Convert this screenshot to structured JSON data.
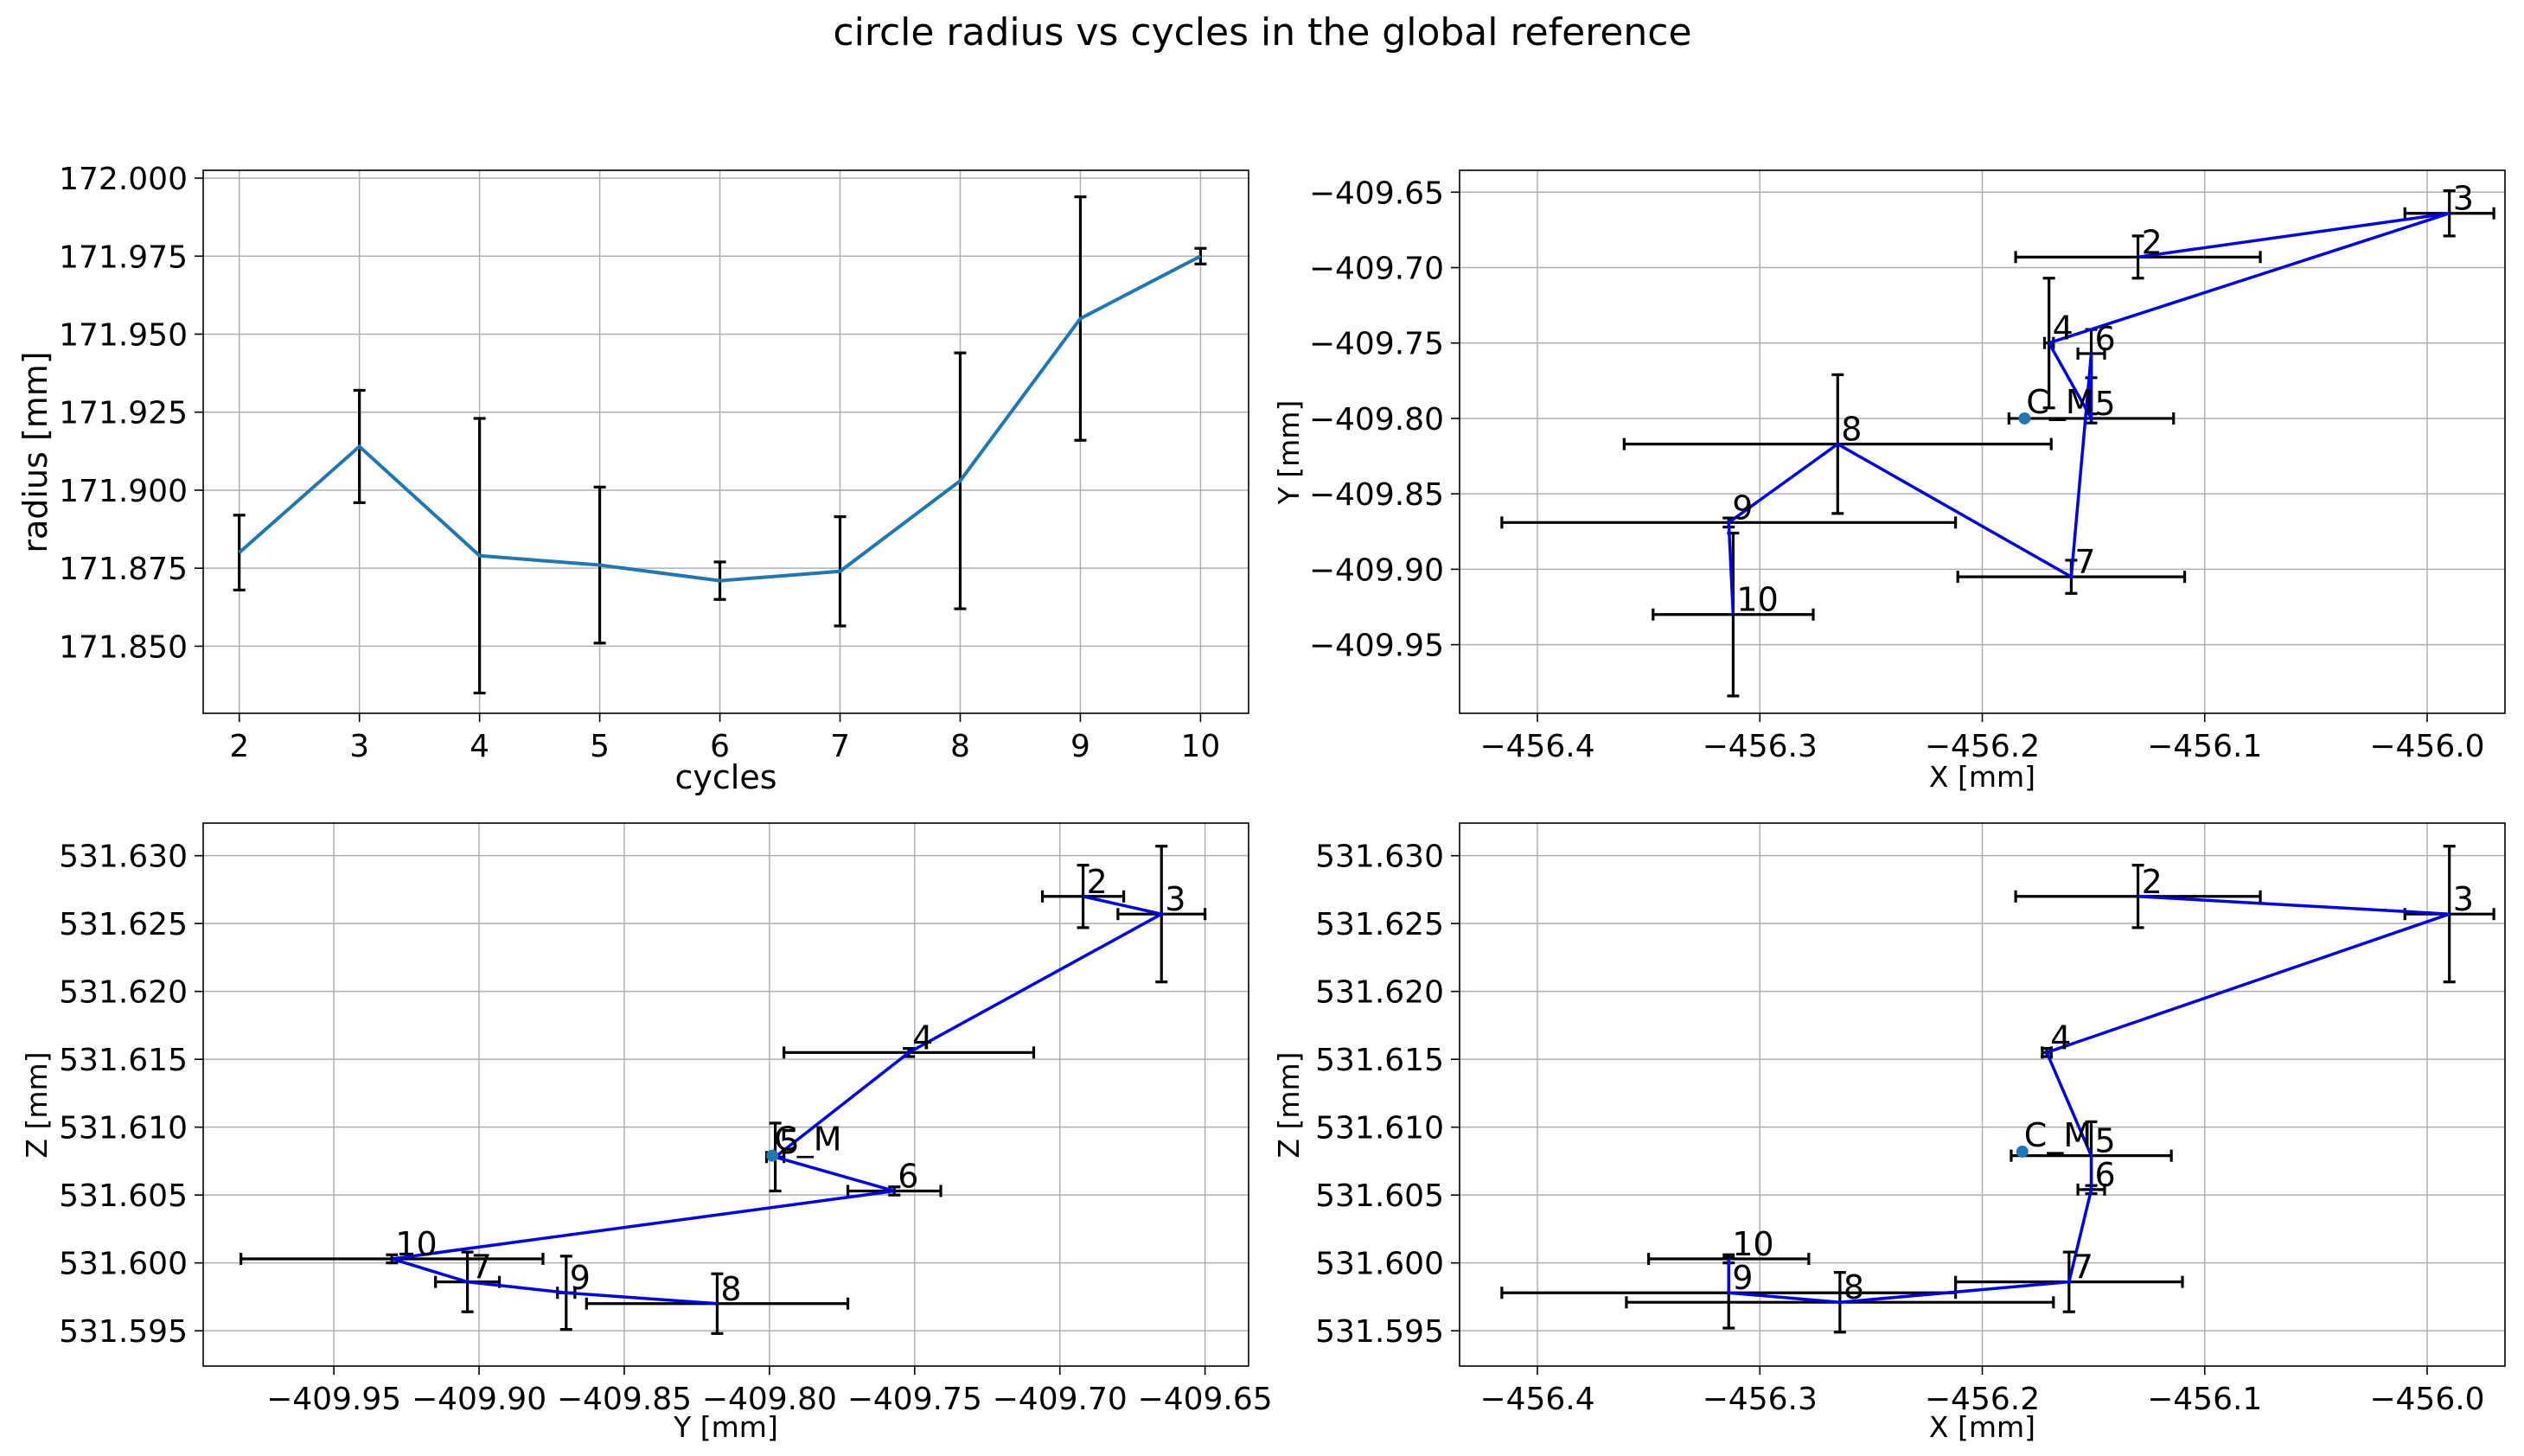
{
  "figure": {
    "suptitle": "circle radius vs cycles in the global reference"
  },
  "chart_data": [
    {
      "type": "line",
      "id": "radius",
      "xlabel": "cycles",
      "ylabel": "radius [mm]",
      "xlim": [
        1.7,
        10.4
      ],
      "ylim": [
        171.8285,
        172.0025
      ],
      "xticks": [
        2,
        3,
        4,
        5,
        6,
        7,
        8,
        9,
        10
      ],
      "xticklabels": [
        "2",
        "3",
        "4",
        "5",
        "6",
        "7",
        "8",
        "9",
        "10"
      ],
      "yticks": [
        171.85,
        171.875,
        171.9,
        171.925,
        171.95,
        171.975,
        172.0
      ],
      "yticklabels": [
        "171.850",
        "171.875",
        "171.900",
        "171.925",
        "171.950",
        "171.975",
        "172.000"
      ],
      "grid": true,
      "line_color": "#1f77b4",
      "x": [
        2,
        3,
        4,
        5,
        6,
        7,
        8,
        9,
        10
      ],
      "y": [
        171.88,
        171.914,
        171.879,
        171.876,
        171.871,
        171.874,
        171.903,
        171.955,
        171.975
      ],
      "yerr": [
        0.012,
        0.018,
        0.044,
        0.025,
        0.006,
        0.0175,
        0.041,
        0.039,
        0.0025
      ]
    },
    {
      "type": "scatter",
      "id": "xy",
      "xlabel": "X [mm]",
      "ylabel": "Y [mm]",
      "xlim": [
        -456.435,
        -455.965
      ],
      "ylim": [
        -409.9955,
        -409.6355
      ],
      "xticks": [
        -456.4,
        -456.3,
        -456.2,
        -456.1,
        -456.0
      ],
      "xticklabels": [
        "−456.4",
        "−456.3",
        "−456.2",
        "−456.1",
        "−456.0"
      ],
      "yticks": [
        -409.95,
        -409.9,
        -409.85,
        -409.8,
        -409.75,
        -409.7,
        -409.65
      ],
      "yticklabels": [
        "−409.95",
        "−409.90",
        "−409.85",
        "−409.80",
        "−409.75",
        "−409.70",
        "−409.65"
      ],
      "grid": true,
      "line_color": "#0000ee",
      "points": [
        {
          "label": "2",
          "x": -456.13,
          "y": -409.693,
          "xerr": 0.055,
          "yerr": 0.014
        },
        {
          "label": "3",
          "x": -455.99,
          "y": -409.664,
          "xerr": 0.02,
          "yerr": 0.015
        },
        {
          "label": "4",
          "x": -456.17,
          "y": -409.75,
          "xerr": 0.002,
          "yerr": 0.043
        },
        {
          "label": "5",
          "x": -456.151,
          "y": -409.8,
          "xerr": 0.037,
          "yerr": 0.003
        },
        {
          "label": "6",
          "x": -456.151,
          "y": -409.757,
          "xerr": 0.006,
          "yerr": 0.016
        },
        {
          "label": "7",
          "x": -456.16,
          "y": -409.905,
          "xerr": 0.051,
          "yerr": 0.011
        },
        {
          "label": "8",
          "x": -456.265,
          "y": -409.817,
          "xerr": 0.096,
          "yerr": 0.046
        },
        {
          "label": "9",
          "x": -456.314,
          "y": -409.869,
          "xerr": 0.102,
          "yerr": 0.003
        },
        {
          "label": "10",
          "x": -456.312,
          "y": -409.93,
          "xerr": 0.036,
          "yerr": 0.054
        }
      ],
      "path": [
        "2",
        "3",
        "4",
        "5",
        "6",
        "7",
        "8",
        "9",
        "10"
      ],
      "marker": {
        "label": "C_M",
        "x": -456.181,
        "y": -409.8,
        "color": "#1f77b4"
      }
    },
    {
      "type": "scatter",
      "id": "yz",
      "xlabel": "Y [mm]",
      "ylabel": "Z [mm]",
      "xlim": [
        -409.995,
        -409.635
      ],
      "ylim": [
        531.5924,
        531.6324
      ],
      "xticks": [
        -409.95,
        -409.9,
        -409.85,
        -409.8,
        -409.75,
        -409.7,
        -409.65
      ],
      "xticklabels": [
        "−409.95",
        "−409.90",
        "−409.85",
        "−409.80",
        "−409.75",
        "−409.70",
        "−409.65"
      ],
      "yticks": [
        531.595,
        531.6,
        531.605,
        531.61,
        531.615,
        531.62,
        531.625,
        531.63
      ],
      "yticklabels": [
        "531.595",
        "531.600",
        "531.605",
        "531.610",
        "531.615",
        "531.620",
        "531.625",
        "531.630"
      ],
      "grid": true,
      "line_color": "#0000ee",
      "points": [
        {
          "label": "2",
          "x": -409.692,
          "y": 531.627,
          "xerr": 0.014,
          "yerr": 0.0023
        },
        {
          "label": "3",
          "x": -409.665,
          "y": 531.6257,
          "xerr": 0.015,
          "yerr": 0.005
        },
        {
          "label": "4",
          "x": -409.752,
          "y": 531.6155,
          "xerr": 0.043,
          "yerr": 0.0003
        },
        {
          "label": "5",
          "x": -409.798,
          "y": 531.6078,
          "xerr": 0.003,
          "yerr": 0.0025
        },
        {
          "label": "6",
          "x": -409.757,
          "y": 531.6053,
          "xerr": 0.016,
          "yerr": 0.0003
        },
        {
          "label": "7",
          "x": -409.904,
          "y": 531.5986,
          "xerr": 0.011,
          "yerr": 0.0022
        },
        {
          "label": "8",
          "x": -409.818,
          "y": 531.597,
          "xerr": 0.045,
          "yerr": 0.0022
        },
        {
          "label": "9",
          "x": -409.87,
          "y": 531.5978,
          "xerr": 0.003,
          "yerr": 0.0027
        },
        {
          "label": "10",
          "x": -409.93,
          "y": 531.6003,
          "xerr": 0.052,
          "yerr": 0.0003
        }
      ],
      "path": [
        "2",
        "3",
        "4",
        "5",
        "6",
        "10",
        "7",
        "9",
        "8"
      ],
      "marker": {
        "label": "C_M",
        "x": -409.799,
        "y": 531.6079,
        "color": "#1f77b4"
      }
    },
    {
      "type": "scatter",
      "id": "xz",
      "xlabel": "X [mm]",
      "ylabel": "Z [mm]",
      "xlim": [
        -456.435,
        -455.965
      ],
      "ylim": [
        531.5924,
        531.6324
      ],
      "xticks": [
        -456.4,
        -456.3,
        -456.2,
        -456.1,
        -456.0
      ],
      "xticklabels": [
        "−456.4",
        "−456.3",
        "−456.2",
        "−456.1",
        "−456.0"
      ],
      "yticks": [
        531.595,
        531.6,
        531.605,
        531.61,
        531.615,
        531.62,
        531.625,
        531.63
      ],
      "yticklabels": [
        "531.595",
        "531.600",
        "531.605",
        "531.610",
        "531.615",
        "531.620",
        "531.625",
        "531.630"
      ],
      "grid": true,
      "line_color": "#0000ee",
      "points": [
        {
          "label": "2",
          "x": -456.13,
          "y": 531.627,
          "xerr": 0.055,
          "yerr": 0.0023
        },
        {
          "label": "3",
          "x": -455.99,
          "y": 531.6257,
          "xerr": 0.02,
          "yerr": 0.005
        },
        {
          "label": "4",
          "x": -456.171,
          "y": 531.6155,
          "xerr": 0.002,
          "yerr": 0.0003
        },
        {
          "label": "5",
          "x": -456.151,
          "y": 531.6079,
          "xerr": 0.036,
          "yerr": 0.0025
        },
        {
          "label": "6",
          "x": -456.151,
          "y": 531.6054,
          "xerr": 0.006,
          "yerr": 0.0003
        },
        {
          "label": "7",
          "x": -456.161,
          "y": 531.5986,
          "xerr": 0.051,
          "yerr": 0.0022
        },
        {
          "label": "8",
          "x": -456.264,
          "y": 531.5971,
          "xerr": 0.096,
          "yerr": 0.0022
        },
        {
          "label": "9",
          "x": -456.314,
          "y": 531.5978,
          "xerr": 0.102,
          "yerr": 0.0026
        },
        {
          "label": "10",
          "x": -456.314,
          "y": 531.6003,
          "xerr": 0.036,
          "yerr": 0.0003
        }
      ],
      "path": [
        "2",
        "3",
        "4",
        "5",
        "6",
        "7",
        "8",
        "9",
        "10"
      ],
      "marker": {
        "label": "C_M",
        "x": -456.182,
        "y": 531.6082,
        "color": "#1f77b4"
      }
    }
  ]
}
